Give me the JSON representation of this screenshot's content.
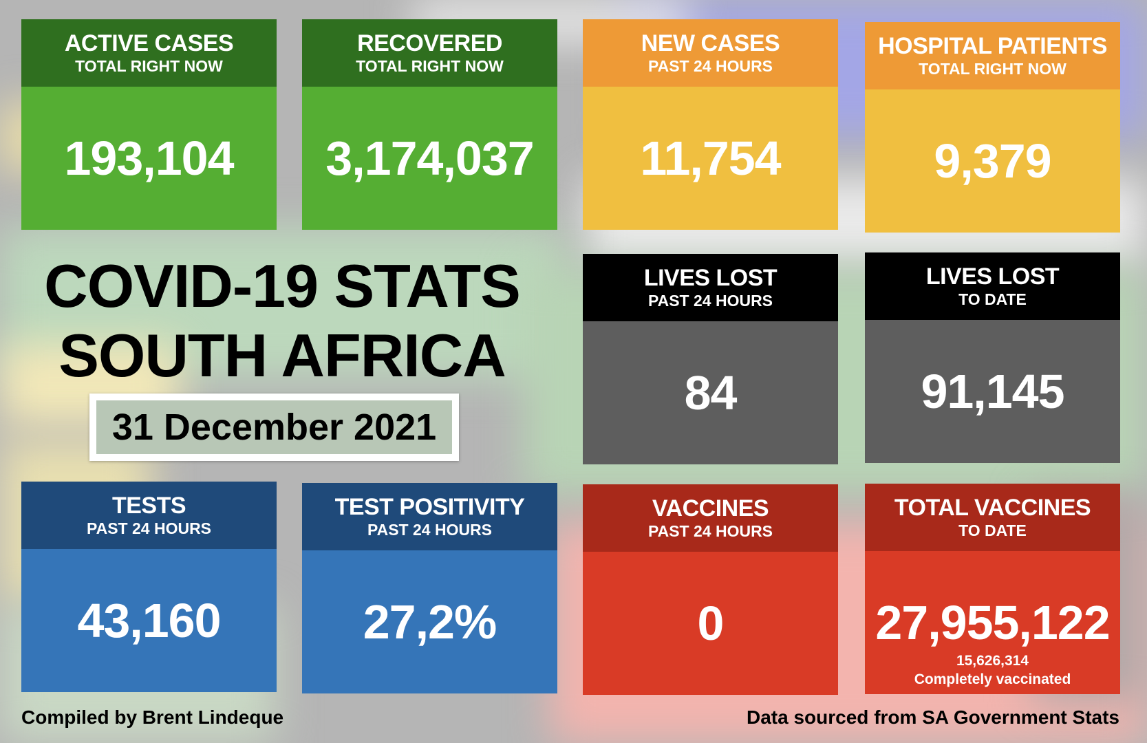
{
  "colors": {
    "green_header": "#2f6f1f",
    "green_body": "#55ae33",
    "orange_header": "#ee9a36",
    "yellow_body": "#f0bf40",
    "black_header": "#000000",
    "gray_body": "#5e5e5e",
    "blue_header": "#1f4a7a",
    "blue_body": "#3575b8",
    "red_header": "#a8291a",
    "red_body": "#d93b26"
  },
  "cards": [
    {
      "title": "ACTIVE CASES",
      "subtitle": "TOTAL RIGHT NOW",
      "value": "193,104"
    },
    {
      "title": "RECOVERED",
      "subtitle": "TOTAL RIGHT NOW",
      "value": "3,174,037"
    },
    {
      "title": "NEW CASES",
      "subtitle": "PAST 24 HOURS",
      "value": "11,754"
    },
    {
      "title": "HOSPITAL PATIENTS",
      "subtitle": "TOTAL RIGHT NOW",
      "value": "9,379"
    },
    {
      "title": "LIVES LOST",
      "subtitle": "PAST 24 HOURS",
      "value": "84"
    },
    {
      "title": "LIVES LOST",
      "subtitle": "TO DATE",
      "value": "91,145"
    },
    {
      "title": "TESTS",
      "subtitle": "PAST 24 HOURS",
      "value": "43,160"
    },
    {
      "title": "TEST POSITIVITY",
      "subtitle": "PAST 24 HOURS",
      "value": "27,2%"
    },
    {
      "title": "VACCINES",
      "subtitle": "PAST 24 HOURS",
      "value": "0"
    },
    {
      "title": "TOTAL VACCINES",
      "subtitle": "TO DATE",
      "value": "27,955,122",
      "extra_value": "15,626,314",
      "extra_label": "Completely vaccinated"
    }
  ],
  "title_line1": "COVID-19 STATS",
  "title_line2": "SOUTH AFRICA",
  "date": "31 December 2021",
  "footer_left": "Compiled by Brent Lindeque",
  "footer_right": "Data sourced from SA Government Stats"
}
